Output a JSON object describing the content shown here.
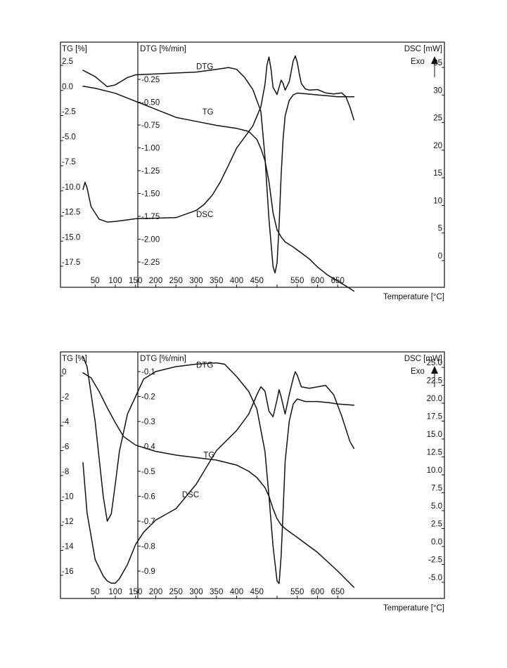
{
  "chart_data": [
    {
      "type": "line",
      "title": "",
      "xlabel": "Temperature  [°C]",
      "x_ticks": [
        50,
        100,
        150,
        200,
        250,
        300,
        350,
        400,
        450,
        500,
        550,
        600,
        650
      ],
      "x_tick_labels": [
        "50",
        "100",
        "150",
        "200",
        "250",
        "300",
        "350",
        "400",
        "450",
        "",
        "550",
        "600",
        "650"
      ],
      "xlim": [
        20,
        700
      ],
      "axes": {
        "tg": {
          "label": "TG [%]",
          "ticks": [
            2.5,
            0.0,
            -2.5,
            -5.0,
            -7.5,
            -10.0,
            -12.5,
            -15.0,
            -17.5
          ],
          "tick_labels": [
            "2.5",
            "0.0",
            "-2.5",
            "-5.0",
            "-7.5",
            "-10.0",
            "-12.5",
            "-15.0",
            "-17.5"
          ],
          "range": [
            -20.5,
            4.0
          ]
        },
        "dtg": {
          "label": "DTG [%/min]",
          "ticks": [
            -0.25,
            -0.5,
            -0.75,
            -1.0,
            -1.25,
            -1.5,
            -1.75,
            -2.0,
            -2.25
          ],
          "tick_labels": [
            "-0.25",
            "-0.50",
            "-0.75",
            "-1.00",
            "-1.25",
            "-1.50",
            "-1.75",
            "-2.00",
            "-2.25"
          ],
          "range": [
            -2.49,
            -0.04
          ]
        },
        "dsc": {
          "label": "DSC [mW]",
          "ticks": [
            35,
            30,
            25,
            20,
            15,
            10,
            5,
            0
          ],
          "tick_labels": [
            "35",
            "30",
            "25",
            "20",
            "15",
            "10",
            "5",
            "0"
          ],
          "range": [
            -3.0,
            37.0
          ]
        }
      },
      "exo_label": "Exo",
      "series": [
        {
          "name": "DTG",
          "axis": "dtg",
          "label_at": [
            300,
            -0.14
          ],
          "x": [
            20,
            50,
            80,
            100,
            130,
            150,
            200,
            250,
            300,
            350,
            380,
            400,
            420,
            440,
            460,
            470,
            480,
            490,
            495,
            500,
            505,
            510,
            515,
            520,
            530,
            540,
            550,
            575,
            600,
            625,
            650,
            675,
            690
          ],
          "y": [
            -0.15,
            -0.22,
            -0.33,
            -0.31,
            -0.23,
            -0.2,
            -0.19,
            -0.18,
            -0.17,
            -0.14,
            -0.12,
            -0.14,
            -0.23,
            -0.36,
            -0.6,
            -1.1,
            -1.78,
            -2.3,
            -2.37,
            -2.26,
            -1.85,
            -1.3,
            -0.9,
            -0.65,
            -0.48,
            -0.42,
            -0.4,
            -0.41,
            -0.42,
            -0.43,
            -0.44,
            -0.44,
            -0.44
          ]
        },
        {
          "name": "TG",
          "axis": "tg",
          "label_at": [
            315,
            -2.8
          ],
          "x": [
            20,
            50,
            100,
            150,
            200,
            250,
            300,
            350,
            400,
            430,
            450,
            460,
            470,
            480,
            490,
            500,
            510,
            520,
            540,
            560,
            580,
            600,
            625,
            650,
            675,
            690
          ],
          "y": [
            0.0,
            -0.2,
            -0.7,
            -1.5,
            -2.3,
            -3.1,
            -3.5,
            -3.9,
            -4.2,
            -4.5,
            -5.3,
            -6.2,
            -7.4,
            -9.5,
            -12.6,
            -14.3,
            -15.0,
            -15.5,
            -16.0,
            -16.6,
            -17.2,
            -18.0,
            -18.8,
            -19.4,
            -20.0,
            -20.4
          ]
        },
        {
          "name": "DSC",
          "axis": "dsc",
          "label_at": [
            300,
            7.0
          ],
          "x": [
            20,
            25,
            30,
            40,
            60,
            80,
            100,
            120,
            150,
            200,
            250,
            300,
            320,
            340,
            360,
            380,
            400,
            420,
            440,
            460,
            470,
            475,
            480,
            485,
            490,
            500,
            505,
            510,
            515,
            520,
            530,
            540,
            545,
            550,
            555,
            560,
            570,
            580,
            600,
            620,
            640,
            650,
            660,
            670,
            680,
            690
          ],
          "y": [
            12.0,
            13.3,
            12.3,
            8.9,
            6.6,
            6.1,
            6.2,
            6.4,
            6.7,
            6.8,
            6.9,
            8.2,
            9.3,
            11.0,
            13.4,
            16.4,
            19.5,
            21.5,
            23.5,
            27.0,
            31.0,
            34.5,
            36.0,
            33.8,
            30.5,
            29.2,
            30.5,
            31.8,
            31.2,
            30.0,
            31.5,
            35.3,
            36.2,
            35.0,
            33.0,
            31.2,
            30.2,
            30.0,
            30.1,
            29.5,
            29.3,
            29.4,
            29.5,
            28.8,
            27.0,
            24.6
          ]
        }
      ]
    },
    {
      "type": "line",
      "title": "",
      "xlabel": "Temperature  [°C]",
      "x_ticks": [
        50,
        100,
        150,
        200,
        250,
        300,
        350,
        400,
        450,
        500,
        550,
        600,
        650
      ],
      "x_tick_labels": [
        "50",
        "100",
        "150",
        "200",
        "250",
        "300",
        "350",
        "400",
        "450",
        "",
        "550",
        "600",
        "650"
      ],
      "xlim": [
        20,
        700
      ],
      "axes": {
        "tg": {
          "label": "TG [%]",
          "ticks": [
            0,
            -2,
            -4,
            -6,
            -8,
            -10,
            -12,
            -14,
            -16
          ],
          "tick_labels": [
            "0",
            "-2",
            "-4",
            "-6",
            "-8",
            "-10",
            "-12",
            "-14",
            "-16"
          ],
          "range": [
            -18.0,
            0.9
          ]
        },
        "dtg": {
          "label": "DTG [%/min]",
          "ticks": [
            -0.1,
            -0.2,
            -0.3,
            -0.4,
            -0.5,
            -0.6,
            -0.7,
            -0.8,
            -0.9
          ],
          "tick_labels": [
            "-0.1",
            "-0.2",
            "-0.3",
            "-0.4",
            "-0.5",
            "-0.6",
            "-0.7",
            "-0.8",
            "-0.9"
          ],
          "range": [
            -1.04,
            -0.04
          ]
        },
        "dsc": {
          "label": "DSC [mW]",
          "ticks": [
            25.0,
            22.5,
            20.0,
            17.5,
            15.0,
            12.5,
            10.0,
            7.5,
            5.0,
            2.5,
            0.0,
            -2.5,
            -5.0
          ],
          "tick_labels": [
            "25.0",
            "22.5",
            "20.0",
            "17.5",
            "15.0",
            "12.5",
            "10.0",
            "7.5",
            "5.0",
            "2.5",
            "0.0",
            "-2.5",
            "-5.0"
          ],
          "range": [
            -7.0,
            26.0
          ]
        },
        "_note_removed": null
      },
      "exo_label": "Exo",
      "series": [
        {
          "name": "DTG",
          "axis": "dtg",
          "label_at": [
            300,
            -0.085
          ],
          "x": [
            20,
            30,
            50,
            70,
            80,
            90,
            100,
            110,
            130,
            150,
            170,
            200,
            250,
            300,
            350,
            370,
            400,
            430,
            450,
            470,
            480,
            490,
            500,
            505,
            510,
            515,
            520,
            530,
            540,
            550,
            560,
            570,
            600,
            630,
            650,
            690
          ],
          "y": [
            -0.04,
            -0.08,
            -0.3,
            -0.6,
            -0.7,
            -0.67,
            -0.55,
            -0.42,
            -0.27,
            -0.2,
            -0.13,
            -0.1,
            -0.08,
            -0.07,
            -0.065,
            -0.07,
            -0.12,
            -0.18,
            -0.25,
            -0.42,
            -0.6,
            -0.8,
            -0.94,
            -0.95,
            -0.84,
            -0.66,
            -0.46,
            -0.3,
            -0.23,
            -0.21,
            -0.215,
            -0.22,
            -0.22,
            -0.225,
            -0.23,
            -0.235
          ]
        },
        {
          "name": "TG",
          "axis": "tg",
          "label_at": [
            318,
            -6.9
          ],
          "x": [
            20,
            40,
            60,
            80,
            100,
            120,
            150,
            200,
            250,
            300,
            350,
            400,
            430,
            450,
            470,
            480,
            490,
            500,
            510,
            520,
            550,
            600,
            650,
            690
          ],
          "y": [
            -0.1,
            -0.5,
            -1.6,
            -2.9,
            -4.1,
            -5.2,
            -5.9,
            -6.4,
            -6.7,
            -6.9,
            -7.1,
            -7.5,
            -8.0,
            -8.5,
            -9.3,
            -10.0,
            -11.0,
            -11.8,
            -12.3,
            -12.6,
            -13.3,
            -14.5,
            -16.0,
            -17.3
          ]
        },
        {
          "name": "DSC",
          "axis": "dsc",
          "label_at": [
            265,
            6.2
          ],
          "x": [
            20,
            30,
            50,
            70,
            80,
            90,
            100,
            110,
            130,
            150,
            170,
            200,
            250,
            300,
            350,
            400,
            430,
            450,
            460,
            470,
            480,
            490,
            500,
            505,
            510,
            520,
            530,
            540,
            545,
            550,
            560,
            580,
            600,
            620,
            640,
            660,
            680,
            690
          ],
          "y": [
            11.0,
            4.0,
            -2.5,
            -4.8,
            -5.5,
            -5.8,
            -5.8,
            -5.2,
            -3.2,
            -0.4,
            1.3,
            3.0,
            4.6,
            8.0,
            12.7,
            15.5,
            17.8,
            20.5,
            21.6,
            21.0,
            18.2,
            17.4,
            19.8,
            21.2,
            20.2,
            17.8,
            20.5,
            22.8,
            23.7,
            23.2,
            21.6,
            21.4,
            21.6,
            21.8,
            20.5,
            17.5,
            14.0,
            13.0
          ]
        }
      ]
    }
  ]
}
